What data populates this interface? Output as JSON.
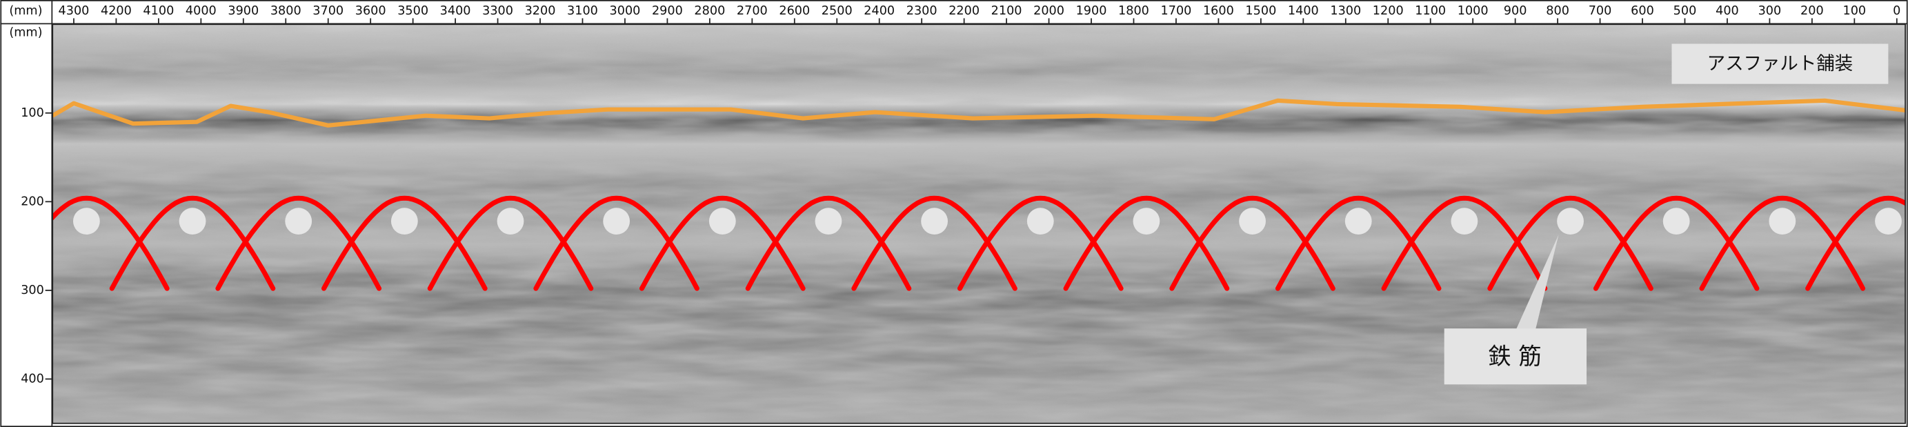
{
  "chart_data": {
    "type": "radargram",
    "x_unit_label": "(mm)",
    "y_unit_label": "(mm)",
    "xlim": [
      4350,
      -20
    ],
    "ylim": [
      0,
      450
    ],
    "xticks": [
      4300,
      4200,
      4100,
      4000,
      3900,
      3800,
      3700,
      3600,
      3500,
      3400,
      3300,
      3200,
      3100,
      3000,
      2900,
      2800,
      2700,
      2600,
      2500,
      2400,
      2300,
      2200,
      2100,
      2000,
      1900,
      1800,
      1700,
      1600,
      1500,
      1400,
      1300,
      1200,
      1100,
      1000,
      900,
      800,
      700,
      600,
      500,
      400,
      300,
      200,
      100,
      0
    ],
    "yticks": [
      100,
      200,
      300,
      400
    ],
    "surface": {
      "color": "#f2a33a",
      "x": [
        4350,
        4300,
        4160,
        4010,
        3930,
        3840,
        3700,
        3470,
        3320,
        3180,
        3040,
        2750,
        2580,
        2410,
        2180,
        1890,
        1610,
        1460,
        1320,
        1030,
        830,
        600,
        170,
        -20
      ],
      "values": [
        103,
        89,
        112,
        110,
        92,
        99,
        114,
        103,
        106,
        100,
        96,
        96,
        106,
        99,
        106,
        103,
        107,
        86,
        90,
        93,
        99,
        93,
        86,
        97
      ]
    },
    "rebars": {
      "color": "#e6e6e6",
      "arc_color": "#ff0000",
      "x": [
        4270,
        4020,
        3770,
        3520,
        3270,
        3020,
        2770,
        2520,
        2270,
        2020,
        1770,
        1520,
        1270,
        1020,
        770,
        520,
        270,
        20
      ],
      "values": [
        222,
        222,
        222,
        222,
        222,
        222,
        222,
        222,
        222,
        222,
        222,
        222,
        222,
        222,
        222,
        222,
        222,
        222
      ]
    },
    "annotations": [
      "アスファルト舗装",
      "鉄 筋"
    ]
  }
}
